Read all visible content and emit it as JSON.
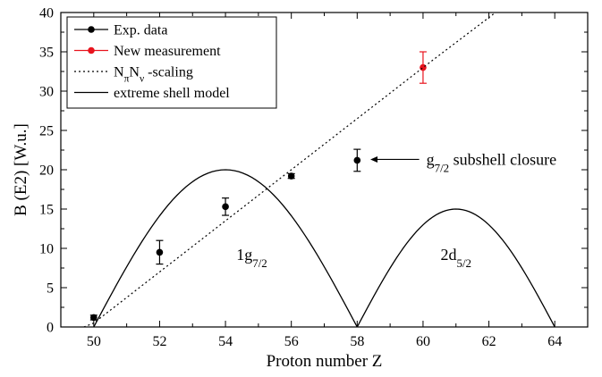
{
  "chart_data": {
    "type": "scatter",
    "xlabel": "Proton number Z",
    "ylabel": "B (E2) [W.u.]",
    "xlim": [
      49,
      65
    ],
    "ylim": [
      0,
      40
    ],
    "xticks": [
      50,
      52,
      54,
      56,
      58,
      60,
      62,
      64
    ],
    "yticks": [
      0,
      5,
      10,
      15,
      20,
      25,
      30,
      35,
      40
    ],
    "legend_position": "top-left",
    "series": [
      {
        "name": "Exp. data",
        "kind": "points",
        "color": "#000000",
        "points": [
          {
            "x": 50,
            "y": 1.2,
            "err": 0.3
          },
          {
            "x": 52,
            "y": 9.5,
            "err": 1.5
          },
          {
            "x": 54,
            "y": 15.3,
            "err": 1.1
          },
          {
            "x": 56,
            "y": 19.2,
            "err": 0.3
          },
          {
            "x": 58,
            "y": 21.2,
            "err": 1.4
          }
        ]
      },
      {
        "name": "New measurement",
        "kind": "points",
        "color": "#e8141e",
        "points": [
          {
            "x": 60,
            "y": 33.0,
            "err": 2.0
          }
        ]
      },
      {
        "name": "NπNν -scaling",
        "kind": "dotted-line",
        "color": "#000000",
        "line": [
          [
            49.7,
            0
          ],
          [
            50,
            0.5
          ],
          [
            60,
            33.0
          ],
          [
            62.2,
            40
          ]
        ]
      },
      {
        "name": "extreme shell model",
        "kind": "solid-curve",
        "color": "#000000",
        "arches": [
          {
            "from": 50,
            "to": 58,
            "peak_x": 54,
            "peak_y": 20
          },
          {
            "from": 58,
            "to": 64,
            "peak_x": 61,
            "peak_y": 15
          }
        ]
      }
    ],
    "annotations": [
      {
        "text": "g7/2 subshell closure",
        "x": 60.1,
        "y": 21.2,
        "arrow_to": [
          58.4,
          21.2
        ]
      },
      {
        "text": "1g7/2",
        "x": 54.8,
        "y": 8.5
      },
      {
        "text": "2d5/2",
        "x": 61.0,
        "y": 8.5
      }
    ]
  }
}
